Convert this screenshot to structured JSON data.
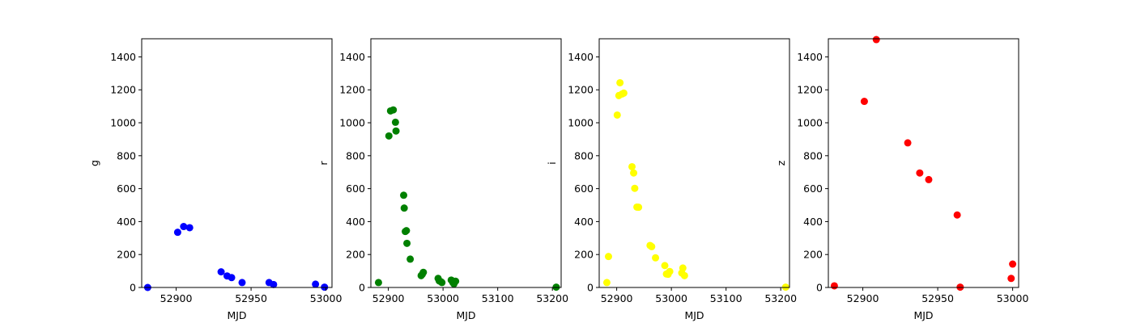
{
  "chart_data": [
    {
      "type": "scatter",
      "xlabel": "MJD",
      "ylabel": "g",
      "color": "#0000ff",
      "xlim": [
        52877,
        53004
      ],
      "ylim": [
        0,
        1510
      ],
      "xticks": [
        52900,
        52950,
        53000
      ],
      "yticks": [
        0,
        200,
        400,
        600,
        800,
        1000,
        1200,
        1400
      ],
      "points": [
        {
          "x": 52881,
          "y": 0
        },
        {
          "x": 52901,
          "y": 335
        },
        {
          "x": 52905,
          "y": 370
        },
        {
          "x": 52909,
          "y": 363
        },
        {
          "x": 52930,
          "y": 95
        },
        {
          "x": 52934,
          "y": 70
        },
        {
          "x": 52937,
          "y": 60
        },
        {
          "x": 52944,
          "y": 30
        },
        {
          "x": 52962,
          "y": 30
        },
        {
          "x": 52965,
          "y": 18
        },
        {
          "x": 52993,
          "y": 20
        },
        {
          "x": 52999,
          "y": 2
        }
      ]
    },
    {
      "type": "scatter",
      "xlabel": "MJD",
      "ylabel": "r",
      "color": "#008000",
      "xlim": [
        52868,
        53216
      ],
      "ylim": [
        0,
        1510
      ],
      "xticks": [
        52900,
        53000,
        53100,
        53200
      ],
      "yticks": [
        0,
        200,
        400,
        600,
        800,
        1000,
        1200,
        1400
      ],
      "points": [
        {
          "x": 52882,
          "y": 30
        },
        {
          "x": 52901,
          "y": 920
        },
        {
          "x": 52904,
          "y": 1072
        },
        {
          "x": 52909,
          "y": 1078
        },
        {
          "x": 52913,
          "y": 1003
        },
        {
          "x": 52914,
          "y": 950
        },
        {
          "x": 52928,
          "y": 560
        },
        {
          "x": 52929,
          "y": 482
        },
        {
          "x": 52931,
          "y": 340
        },
        {
          "x": 52933,
          "y": 345
        },
        {
          "x": 52934,
          "y": 268
        },
        {
          "x": 52940,
          "y": 172
        },
        {
          "x": 52960,
          "y": 72
        },
        {
          "x": 52962,
          "y": 80
        },
        {
          "x": 52964,
          "y": 92
        },
        {
          "x": 52991,
          "y": 55
        },
        {
          "x": 52993,
          "y": 40
        },
        {
          "x": 52996,
          "y": 35
        },
        {
          "x": 52998,
          "y": 30
        },
        {
          "x": 53015,
          "y": 45
        },
        {
          "x": 53018,
          "y": 30
        },
        {
          "x": 53020,
          "y": 22
        },
        {
          "x": 53023,
          "y": 38
        },
        {
          "x": 53207,
          "y": 2
        }
      ]
    },
    {
      "type": "scatter",
      "xlabel": "MJD",
      "ylabel": "i",
      "color": "#ffff00",
      "xlim": [
        52868,
        53216
      ],
      "ylim": [
        0,
        1510
      ],
      "xticks": [
        52900,
        53000,
        53100,
        53200
      ],
      "yticks": [
        0,
        200,
        400,
        600,
        800,
        1000,
        1200,
        1400
      ],
      "points": [
        {
          "x": 52882,
          "y": 30
        },
        {
          "x": 52885,
          "y": 188
        },
        {
          "x": 52901,
          "y": 1047
        },
        {
          "x": 52904,
          "y": 1165
        },
        {
          "x": 52906,
          "y": 1243
        },
        {
          "x": 52910,
          "y": 1175
        },
        {
          "x": 52913,
          "y": 1180
        },
        {
          "x": 52928,
          "y": 733
        },
        {
          "x": 52931,
          "y": 695
        },
        {
          "x": 52933,
          "y": 602
        },
        {
          "x": 52937,
          "y": 488
        },
        {
          "x": 52940,
          "y": 487
        },
        {
          "x": 52961,
          "y": 255
        },
        {
          "x": 52964,
          "y": 248
        },
        {
          "x": 52971,
          "y": 180
        },
        {
          "x": 52988,
          "y": 133
        },
        {
          "x": 52991,
          "y": 82
        },
        {
          "x": 52994,
          "y": 80
        },
        {
          "x": 52997,
          "y": 97
        },
        {
          "x": 53019,
          "y": 88
        },
        {
          "x": 53021,
          "y": 118
        },
        {
          "x": 53024,
          "y": 72
        },
        {
          "x": 53209,
          "y": 2
        }
      ]
    },
    {
      "type": "scatter",
      "xlabel": "MJD",
      "ylabel": "z",
      "color": "#ff0000",
      "xlim": [
        52877,
        53004
      ],
      "ylim": [
        0,
        1510
      ],
      "xticks": [
        52900,
        52950,
        53000
      ],
      "yticks": [
        0,
        200,
        400,
        600,
        800,
        1000,
        1200,
        1400
      ],
      "points": [
        {
          "x": 52881,
          "y": 10
        },
        {
          "x": 52901,
          "y": 1130
        },
        {
          "x": 52909,
          "y": 1505
        },
        {
          "x": 52930,
          "y": 878
        },
        {
          "x": 52938,
          "y": 695
        },
        {
          "x": 52944,
          "y": 655
        },
        {
          "x": 52963,
          "y": 440
        },
        {
          "x": 52965,
          "y": 2
        },
        {
          "x": 52999,
          "y": 55
        },
        {
          "x": 53000,
          "y": 142
        }
      ]
    }
  ]
}
